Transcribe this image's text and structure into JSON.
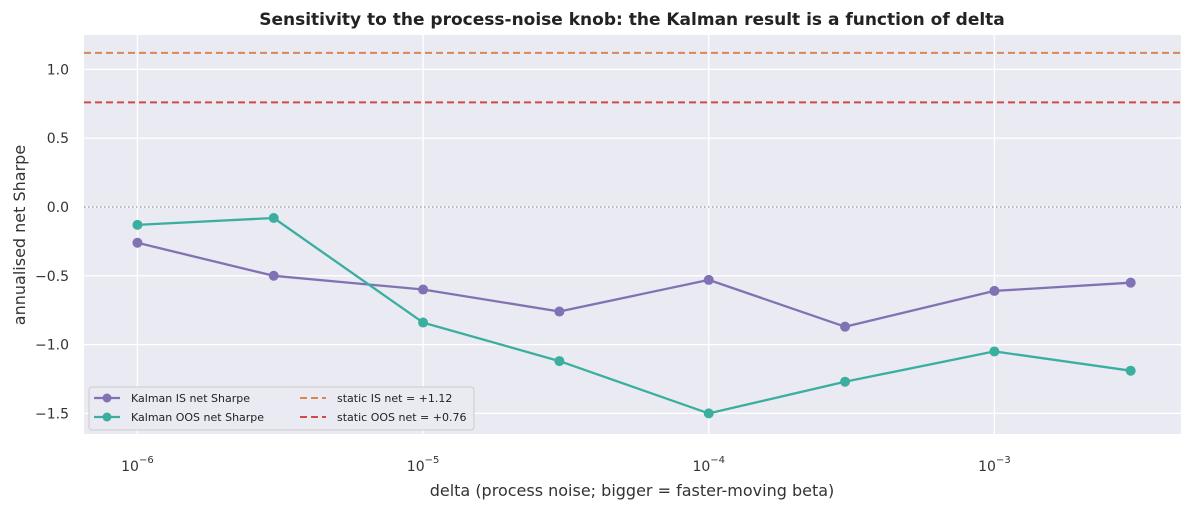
{
  "chart_data": {
    "type": "line",
    "title": "Sensitivity to the process-noise knob: the Kalman result is a function of delta",
    "xlabel": "delta  (process noise; bigger = faster-moving beta)",
    "ylabel": "annualised net Sharpe",
    "x_scale": "log",
    "xlim": [
      6.5e-07,
      0.0045
    ],
    "ylim": [
      -1.65,
      1.25
    ],
    "x_ticks": [
      {
        "value": 1e-06,
        "base": "10",
        "exp": "−6"
      },
      {
        "value": 1e-05,
        "base": "10",
        "exp": "−5"
      },
      {
        "value": 0.0001,
        "base": "10",
        "exp": "−4"
      },
      {
        "value": 0.001,
        "base": "10",
        "exp": "−3"
      }
    ],
    "y_ticks": [
      {
        "value": 1.0,
        "label": "1.0"
      },
      {
        "value": 0.5,
        "label": "0.5"
      },
      {
        "value": 0.0,
        "label": "0.0"
      },
      {
        "value": -0.5,
        "label": "−0.5"
      },
      {
        "value": -1.0,
        "label": "−1.0"
      },
      {
        "value": -1.5,
        "label": "−1.5"
      }
    ],
    "grid": true,
    "x": [
      1e-06,
      3e-06,
      1e-05,
      3e-05,
      0.0001,
      0.0003,
      0.001,
      0.003
    ],
    "series": [
      {
        "name": "Kalman IS net Sharpe",
        "color": "#8172b3",
        "values": [
          -0.26,
          -0.5,
          -0.6,
          -0.76,
          -0.53,
          -0.87,
          -0.61,
          -0.55
        ]
      },
      {
        "name": "Kalman OOS net Sharpe",
        "color": "#3aaf9f",
        "values": [
          -0.13,
          -0.08,
          -0.84,
          -1.12,
          -1.5,
          -1.27,
          -1.05,
          -1.19
        ]
      }
    ],
    "hlines": [
      {
        "name": "static IS net = +1.12",
        "value": 1.12,
        "color": "#dd8452",
        "style": "dashed"
      },
      {
        "name": "static OOS net = +0.76",
        "value": 0.76,
        "color": "#d04a4a",
        "style": "dashed"
      },
      {
        "value": 0.0,
        "color": "#808080",
        "style": "dotted"
      }
    ],
    "legend_position": "lower-left"
  }
}
